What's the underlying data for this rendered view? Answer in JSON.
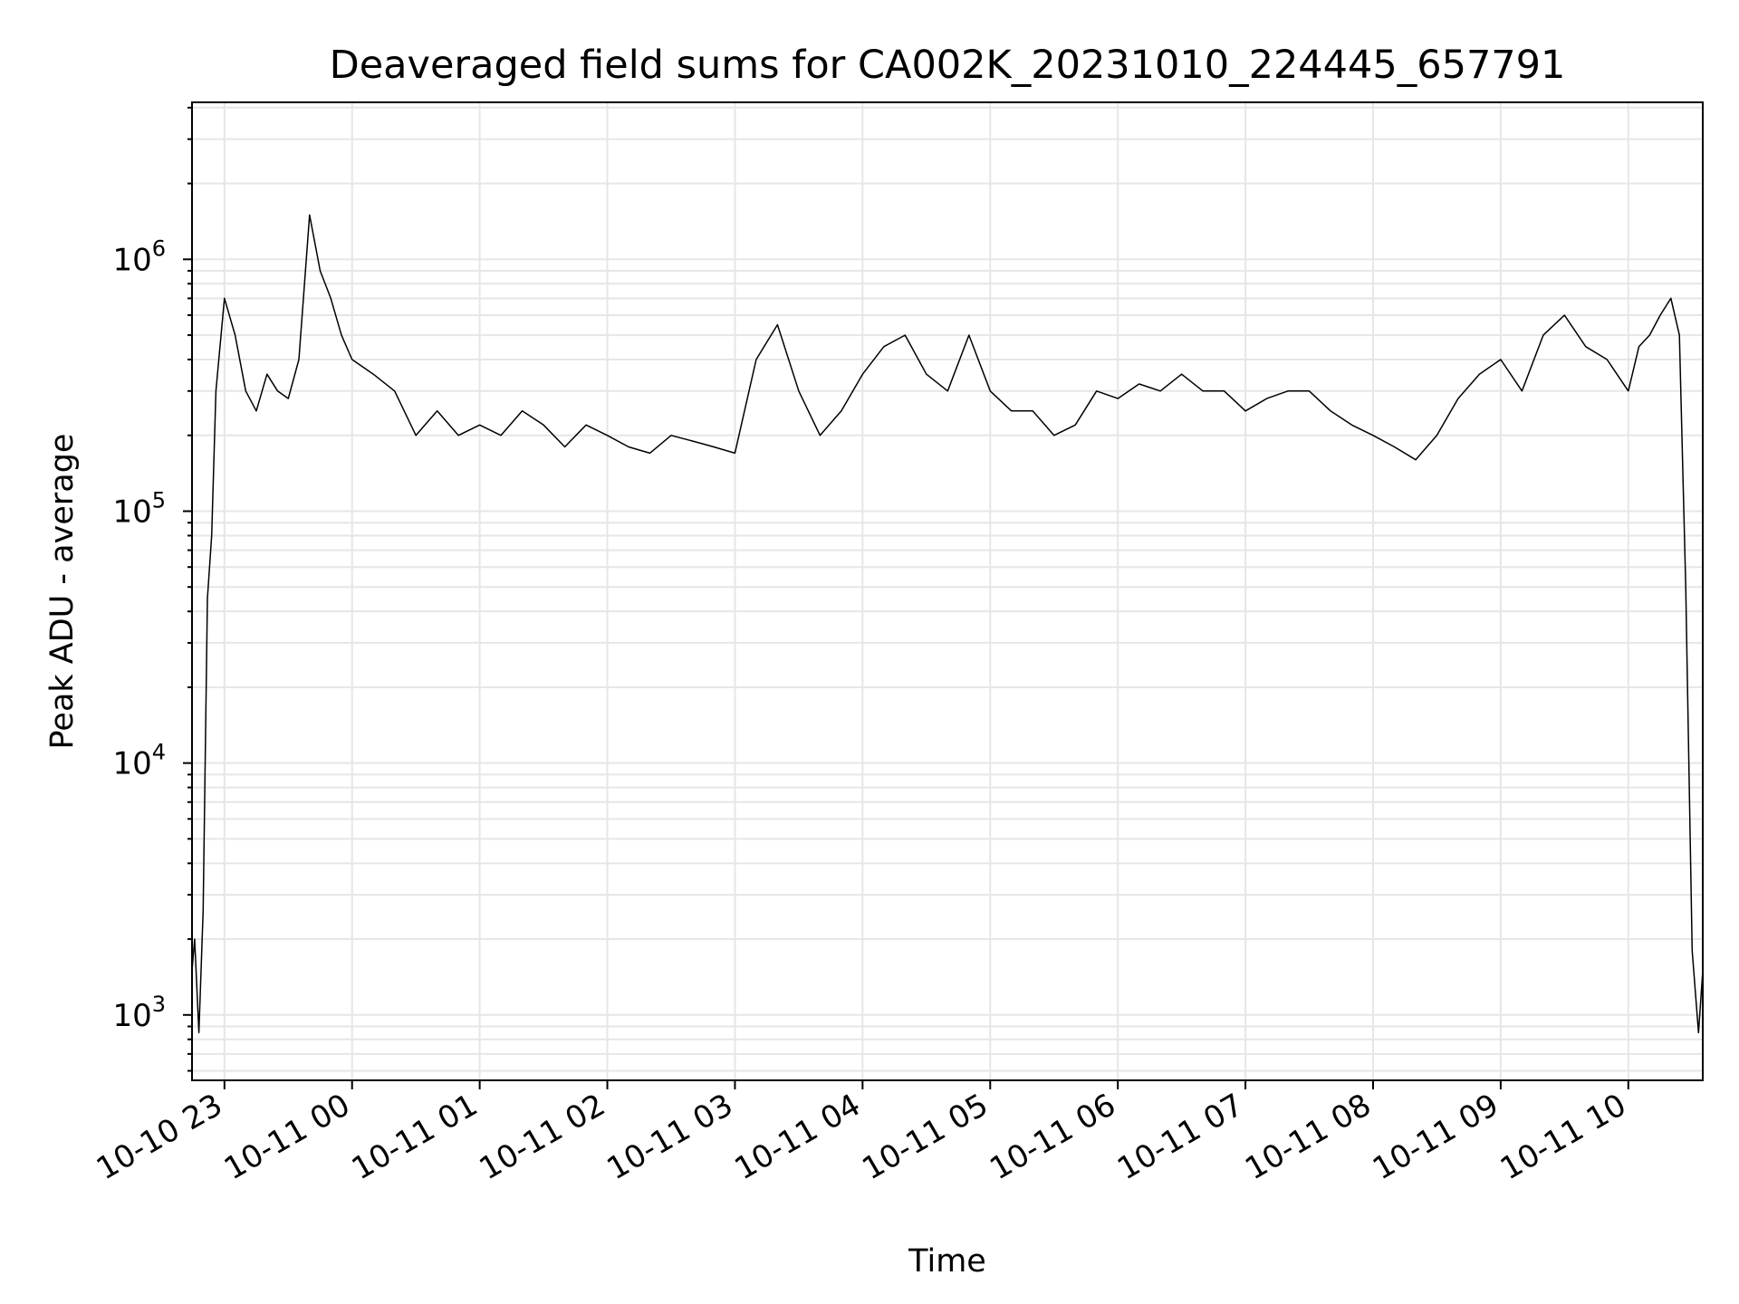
{
  "chart_data": {
    "type": "line",
    "title": "Deaveraged field sums for CA002K_20231010_224445_657791",
    "xlabel": "Time",
    "ylabel": "Peak ADU - average",
    "y_scale": "log",
    "ylim": [
      550,
      4200000
    ],
    "xlim": [
      "2023-10-10 22:44:45",
      "2023-10-11 10:35:00"
    ],
    "grid": true,
    "legend": "none",
    "colors": {
      "line": "#000000",
      "grid": "#e6e6e6",
      "axes": "#000000"
    },
    "y_major_ticks": [
      {
        "value": 1000,
        "base": "10",
        "exp": "3"
      },
      {
        "value": 10000,
        "base": "10",
        "exp": "4"
      },
      {
        "value": 100000,
        "base": "10",
        "exp": "5"
      },
      {
        "value": 1000000,
        "base": "10",
        "exp": "6"
      }
    ],
    "x_ticks": [
      {
        "value": "2023-10-10 23:00:00",
        "label": "10-10 23"
      },
      {
        "value": "2023-10-11 00:00:00",
        "label": "10-11 00"
      },
      {
        "value": "2023-10-11 01:00:00",
        "label": "10-11 01"
      },
      {
        "value": "2023-10-11 02:00:00",
        "label": "10-11 02"
      },
      {
        "value": "2023-10-11 03:00:00",
        "label": "10-11 03"
      },
      {
        "value": "2023-10-11 04:00:00",
        "label": "10-11 04"
      },
      {
        "value": "2023-10-11 05:00:00",
        "label": "10-11 05"
      },
      {
        "value": "2023-10-11 06:00:00",
        "label": "10-11 06"
      },
      {
        "value": "2023-10-11 07:00:00",
        "label": "10-11 07"
      },
      {
        "value": "2023-10-11 08:00:00",
        "label": "10-11 08"
      },
      {
        "value": "2023-10-11 09:00:00",
        "label": "10-11 09"
      },
      {
        "value": "2023-10-11 10:00:00",
        "label": "10-11 10"
      }
    ],
    "series": [
      {
        "x": [
          "2023-10-10 22:44:45",
          "2023-10-10 22:46:00",
          "2023-10-10 22:48:00",
          "2023-10-10 22:50:00",
          "2023-10-10 22:52:00",
          "2023-10-10 22:54:00",
          "2023-10-10 22:56:00",
          "2023-10-10 23:00:00",
          "2023-10-10 23:05:00",
          "2023-10-10 23:10:00",
          "2023-10-10 23:15:00",
          "2023-10-10 23:20:00",
          "2023-10-10 23:25:00",
          "2023-10-10 23:30:00",
          "2023-10-10 23:35:00",
          "2023-10-10 23:40:00",
          "2023-10-10 23:45:00",
          "2023-10-10 23:50:00",
          "2023-10-10 23:55:00",
          "2023-10-11 00:00:00",
          "2023-10-11 00:10:00",
          "2023-10-11 00:20:00",
          "2023-10-11 00:30:00",
          "2023-10-11 00:40:00",
          "2023-10-11 00:50:00",
          "2023-10-11 01:00:00",
          "2023-10-11 01:10:00",
          "2023-10-11 01:20:00",
          "2023-10-11 01:30:00",
          "2023-10-11 01:40:00",
          "2023-10-11 01:50:00",
          "2023-10-11 02:00:00",
          "2023-10-11 02:10:00",
          "2023-10-11 02:20:00",
          "2023-10-11 02:30:00",
          "2023-10-11 02:40:00",
          "2023-10-11 02:50:00",
          "2023-10-11 03:00:00",
          "2023-10-11 03:10:00",
          "2023-10-11 03:20:00",
          "2023-10-11 03:30:00",
          "2023-10-11 03:40:00",
          "2023-10-11 03:50:00",
          "2023-10-11 04:00:00",
          "2023-10-11 04:10:00",
          "2023-10-11 04:20:00",
          "2023-10-11 04:30:00",
          "2023-10-11 04:40:00",
          "2023-10-11 04:50:00",
          "2023-10-11 05:00:00",
          "2023-10-11 05:10:00",
          "2023-10-11 05:20:00",
          "2023-10-11 05:30:00",
          "2023-10-11 05:40:00",
          "2023-10-11 05:50:00",
          "2023-10-11 06:00:00",
          "2023-10-11 06:10:00",
          "2023-10-11 06:20:00",
          "2023-10-11 06:30:00",
          "2023-10-11 06:40:00",
          "2023-10-11 06:50:00",
          "2023-10-11 07:00:00",
          "2023-10-11 07:10:00",
          "2023-10-11 07:20:00",
          "2023-10-11 07:30:00",
          "2023-10-11 07:40:00",
          "2023-10-11 07:50:00",
          "2023-10-11 08:00:00",
          "2023-10-11 08:10:00",
          "2023-10-11 08:20:00",
          "2023-10-11 08:30:00",
          "2023-10-11 08:40:00",
          "2023-10-11 08:50:00",
          "2023-10-11 09:00:00",
          "2023-10-11 09:10:00",
          "2023-10-11 09:20:00",
          "2023-10-11 09:30:00",
          "2023-10-11 09:40:00",
          "2023-10-11 09:50:00",
          "2023-10-11 10:00:00",
          "2023-10-11 10:05:00",
          "2023-10-11 10:10:00",
          "2023-10-11 10:15:00",
          "2023-10-11 10:20:00",
          "2023-10-11 10:24:00",
          "2023-10-11 10:27:00",
          "2023-10-11 10:30:00",
          "2023-10-11 10:33:00",
          "2023-10-11 10:35:00"
        ],
        "y": [
          1500,
          2000,
          850,
          2600,
          45000,
          80000,
          300000,
          700000,
          500000,
          300000,
          250000,
          350000,
          300000,
          280000,
          400000,
          1500000,
          900000,
          700000,
          500000,
          400000,
          350000,
          300000,
          200000,
          250000,
          200000,
          220000,
          200000,
          250000,
          220000,
          180000,
          220000,
          200000,
          180000,
          170000,
          200000,
          190000,
          180000,
          170000,
          400000,
          550000,
          300000,
          200000,
          250000,
          350000,
          450000,
          500000,
          350000,
          300000,
          500000,
          300000,
          250000,
          250000,
          200000,
          220000,
          300000,
          280000,
          320000,
          300000,
          350000,
          300000,
          300000,
          250000,
          280000,
          300000,
          300000,
          250000,
          220000,
          200000,
          180000,
          160000,
          200000,
          280000,
          350000,
          400000,
          300000,
          500000,
          600000,
          450000,
          400000,
          300000,
          450000,
          500000,
          600000,
          700000,
          500000,
          50000,
          1800,
          850,
          1500
        ]
      }
    ]
  }
}
